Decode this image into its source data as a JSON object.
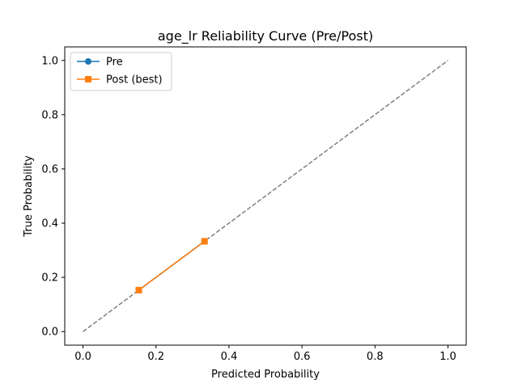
{
  "chart_data": {
    "type": "line",
    "title": "age_lr Reliability Curve (Pre/Post)",
    "xlabel": "Predicted Probability",
    "ylabel": "True Probability",
    "xlim": [
      -0.05,
      1.05
    ],
    "ylim": [
      -0.05,
      1.05
    ],
    "x_ticks": [
      "0.0",
      "0.2",
      "0.4",
      "0.6",
      "0.8",
      "1.0"
    ],
    "y_ticks": [
      "0.0",
      "0.2",
      "0.4",
      "0.6",
      "0.8",
      "1.0"
    ],
    "grid": false,
    "legend_position": "top-left",
    "reference_line": {
      "x": [
        0,
        1
      ],
      "y": [
        0,
        1
      ],
      "color": "#808080",
      "style": "dashed"
    },
    "series": [
      {
        "name": "Pre",
        "color": "#1f77b4",
        "marker": "circle",
        "x": [
          0.153,
          0.333
        ],
        "y": [
          0.153,
          0.333
        ]
      },
      {
        "name": "Post (best)",
        "color": "#ff7f0e",
        "marker": "square",
        "x": [
          0.153,
          0.333
        ],
        "y": [
          0.153,
          0.333
        ]
      }
    ]
  }
}
